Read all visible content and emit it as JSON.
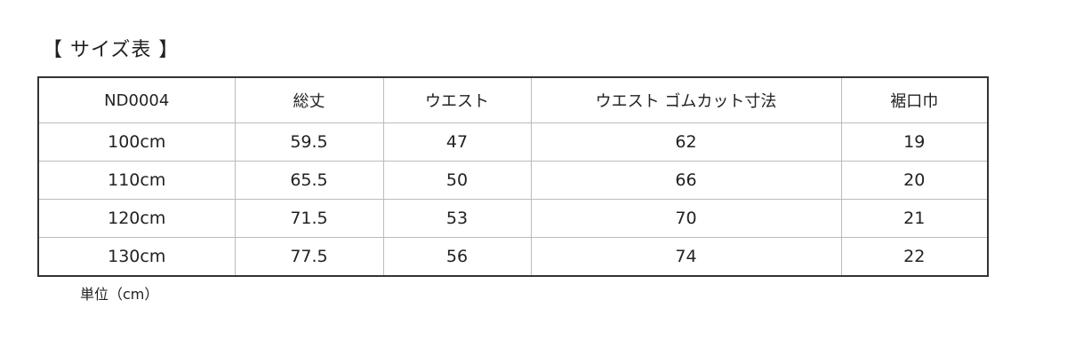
{
  "title": "【 サイズ表 】",
  "table": {
    "headers": [
      "ND0004",
      "総丈",
      "ウエスト",
      "ウエスト ゴムカット寸法",
      "裾口巾"
    ],
    "rows": [
      [
        "100cm",
        "59.5",
        "47",
        "62",
        "19"
      ],
      [
        "110cm",
        "65.5",
        "50",
        "66",
        "20"
      ],
      [
        "120cm",
        "71.5",
        "53",
        "70",
        "21"
      ],
      [
        "130cm",
        "77.5",
        "56",
        "74",
        "22"
      ]
    ]
  },
  "note": "単位（cm）"
}
